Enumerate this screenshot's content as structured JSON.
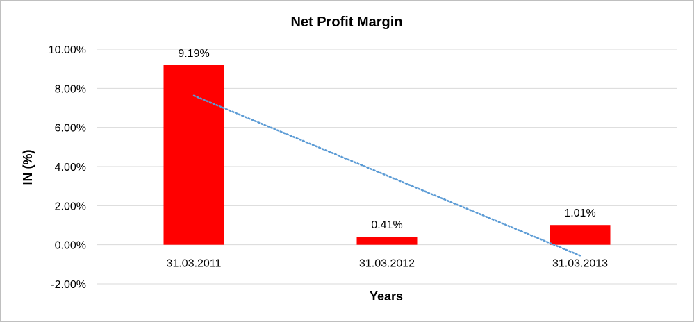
{
  "chart_data": {
    "type": "bar",
    "title": "Net Profit Margin",
    "xlabel": "Years",
    "ylabel": "IN (%)",
    "categories": [
      "31.03.2011",
      "31.03.2012",
      "31.03.2013"
    ],
    "values": [
      9.19,
      0.41,
      1.01
    ],
    "data_labels": [
      "9.19%",
      "0.41%",
      "1.01%"
    ],
    "ylim": [
      -2,
      10
    ],
    "yticks": [
      10,
      8,
      6,
      4,
      2,
      0,
      -2
    ],
    "ytick_labels": [
      "10.00%",
      "8.00%",
      "6.00%",
      "4.00%",
      "2.00%",
      "0.00%",
      "-2.00%"
    ],
    "bar_color": "#ff0000",
    "trendline": {
      "type": "linear",
      "style": "dotted",
      "color": "#5b9bd5"
    },
    "grid": true,
    "legend": "none"
  }
}
